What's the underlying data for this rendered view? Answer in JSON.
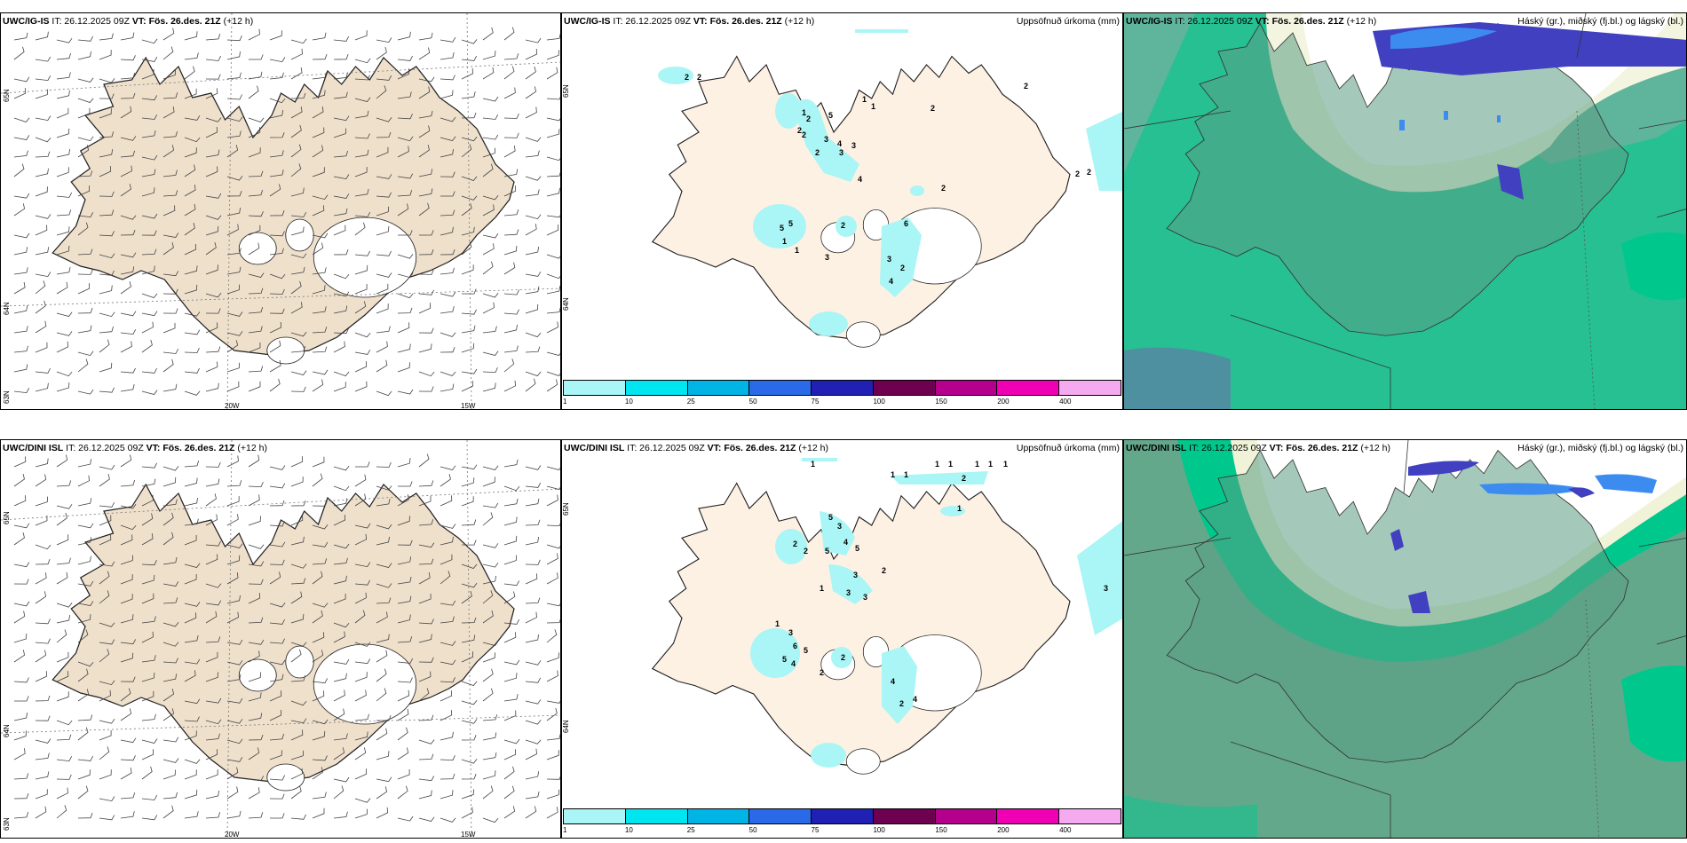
{
  "panels": {
    "top_wind": {
      "model": "UWC/IG-IS",
      "it": "IT: 26.12.2025 09Z",
      "vt": "VT: Fös. 26.des. 21Z",
      "lead": "(+12 h)",
      "lat_labels": [
        "65N",
        "64N",
        "63N"
      ],
      "lon_labels": [
        "20W",
        "15W"
      ]
    },
    "top_precip": {
      "model": "UWC/IG-IS",
      "it": "IT: 26.12.2025 09Z",
      "vt": "VT: Fös. 26.des. 21Z",
      "lead": "(+12 h)",
      "field": "Uppsöfnuð úrkoma (mm)",
      "lat_labels": [
        "65N",
        "64N"
      ]
    },
    "top_cloud": {
      "model": "UWC/IG-IS",
      "it": "IT: 26.12.2025 09Z",
      "vt": "VT: Fös. 26.des. 21Z",
      "lead": "(+12 h)",
      "field": "Háský (gr.), miðský (fj.bl.) og lágský (bl.)"
    },
    "bottom_wind": {
      "model": "UWC/DINI ISL",
      "it": "IT: 26.12.2025 09Z",
      "vt": "VT: Fös. 26.des. 21Z",
      "lead": "(+12 h)",
      "lat_labels": [
        "65N",
        "64N",
        "63N"
      ],
      "lon_labels": [
        "20W",
        "15W"
      ]
    },
    "bottom_precip": {
      "model": "UWC/DINI ISL",
      "it": "IT: 26.12.2025 09Z",
      "vt": "VT: Fös. 26.des. 21Z",
      "lead": "(+12 h)",
      "field": "Uppsöfnuð úrkoma (mm)",
      "lat_labels": [
        "65N",
        "64N"
      ]
    },
    "bottom_cloud": {
      "model": "UWC/DINI ISL",
      "it": "IT: 26.12.2025 09Z",
      "vt": "VT: Fös. 26.des. 21Z",
      "lead": "(+12 h)",
      "field": "Háský (gr.), miðský (fj.bl.) og lágský (bl.)"
    }
  },
  "precip_legend": {
    "ticks": [
      "1",
      "10",
      "25",
      "50",
      "75",
      "100",
      "150",
      "200",
      "400"
    ],
    "colors": [
      "#aaf5f5",
      "#00e6f0",
      "#00b4e6",
      "#2a6ae8",
      "#2020b4",
      "#6e0050",
      "#b4008c",
      "#f000b4",
      "#f5aaf0"
    ]
  },
  "precip_values_top": [
    "2",
    "2",
    "1",
    "2",
    "5",
    "2",
    "1",
    "1",
    "2",
    "3",
    "4",
    "3",
    "2",
    "3",
    "4",
    "2",
    "2",
    "2",
    "5",
    "5",
    "1",
    "1",
    "3",
    "2",
    "6",
    "3",
    "2",
    "4",
    "2",
    "2"
  ],
  "precip_values_bottom": [
    "1",
    "1",
    "1",
    "1",
    "1",
    "2",
    "1",
    "1",
    "1",
    "1",
    "2",
    "2",
    "5",
    "3",
    "4",
    "5",
    "5",
    "3",
    "2",
    "3",
    "3",
    "1",
    "1",
    "3",
    "6",
    "5",
    "5",
    "4",
    "2",
    "2",
    "4",
    "2",
    "4",
    "3"
  ],
  "colors": {
    "land_wind": "#efe0cc",
    "land_precip": "#fdf1e4",
    "sea": "#ffffff",
    "cloud_low": "#5fb49c",
    "cloud_low_dark": "#64a88c",
    "cloud_mid": "#00c88c",
    "cloud_high": "#4040c0",
    "cloud_high_light": "#3c8cf0"
  }
}
